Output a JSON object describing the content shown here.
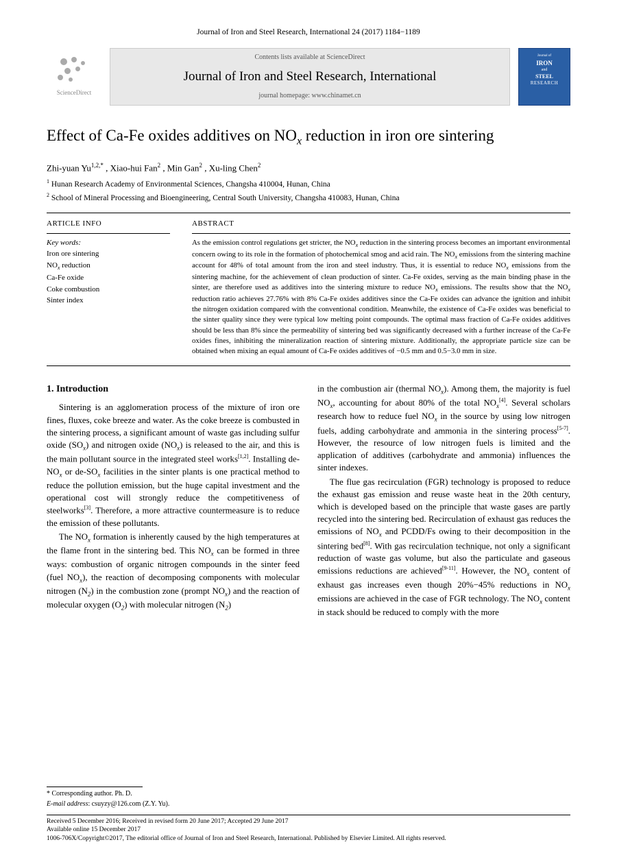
{
  "running_head": "Journal of Iron and Steel Research, International 24 (2017) 1184−1189",
  "masthead": {
    "sd_label": "ScienceDirect",
    "contents_line": "Contents lists available at ScienceDirect",
    "journal_name": "Journal of Iron and Steel Research, International",
    "homepage": "journal homepage: www.chinamet.cn",
    "cover": {
      "journal": "Journal of",
      "iron": "IRON",
      "and": "and",
      "steel": "STEEL",
      "research": "RESEARCH"
    }
  },
  "title_pre": "Effect of Ca-Fe oxides additives on NO",
  "title_sub": "x",
  "title_post": " reduction in iron ore sintering",
  "authors_html": "Zhi-yuan Yu",
  "author_sup1": "1,2,*",
  "author_sep": " ,  ",
  "author2": "Xiao-hui Fan",
  "author2_sup": "2",
  "author3": "Min Gan",
  "author3_sup": "2",
  "author4": "Xu-ling Chen",
  "author4_sup": "2",
  "affil1_sup": "1",
  "affil1": " Hunan Research Academy of Environmental Sciences, Changsha 410004, Hunan, China",
  "affil2_sup": "2",
  "affil2": " School of Mineral Processing and Bioengineering, Central South University, Changsha 410083, Hunan, China",
  "info": {
    "left_head": "ARTICLE INFO",
    "right_head": "ABSTRACT",
    "kw_label": "Key words:",
    "keywords": [
      "Iron ore sintering",
      "NO_x reduction",
      "Ca-Fe oxide",
      "Coke combustion",
      "Sinter index"
    ]
  },
  "abstract": "As the emission control regulations get stricter, the NO_x reduction in the sintering process becomes an important environmental concern owing to its role in the formation of photochemical smog and acid rain. The NO_x emissions from the sintering machine account for 48% of total amount from the iron and steel industry. Thus, it is essential to reduce NO_x emissions from the sintering machine, for the achievement of clean production of sinter. Ca-Fe oxides, serving as the main binding phase in the sinter, are therefore used as additives into the sintering mixture to reduce NO_x emissions. The results show that the NO_x reduction ratio achieves 27.76% with 8% Ca-Fe oxides additives since the Ca-Fe oxides can advance the ignition and inhibit the nitrogen oxidation compared with the conventional condition. Meanwhile, the existence of Ca-Fe oxides was beneficial to the sinter quality since they were typical low melting point compounds. The optimal mass fraction of Ca-Fe oxides additives should be less than 8% since the permeability of sintering bed was significantly decreased with a further increase of the Ca-Fe oxides fines, inhibiting the mineralization reaction of sintering mixture. Additionally, the appropriate particle size can be obtained when mixing an equal amount of Ca-Fe oxides additives of −0.5 mm and 0.5−3.0 mm in size.",
  "section1_head": "1. Introduction",
  "col1_p1": "Sintering is an agglomeration process of the mixture of iron ore fines, fluxes, coke breeze and water. As the coke breeze is combusted in the sintering process, a significant amount of waste gas including sulfur oxide (SO_x) and nitrogen oxide (NO_x) is released to the air, and this is the main pollutant source in the integrated steel works^[1,2]. Installing de-NO_x or de-SO_x facilities in the sinter plants is one practical method to reduce the pollution emission, but the huge capital investment and the operational cost will strongly reduce the competitiveness of steelworks^[3]. Therefore, a more attractive countermeasure is to reduce the emission of these pollutants.",
  "col1_p2": "The NO_x formation is inherently caused by the high temperatures at the flame front in the sintering bed. This NO_x can be formed in three ways: combustion of organic nitrogen compounds in the sinter feed (fuel NO_x), the reaction of decomposing components with molecular nitrogen (N_2) in the combustion zone (prompt NO_x) and the reaction of molecular oxygen (O_2) with molecular nitrogen (N_2)",
  "col2_p1": "in the combustion air (thermal NO_x). Among them, the majority is fuel NO_x, accounting for about 80% of the total NO_x^[4]. Several scholars research how to reduce fuel NO_x in the source by using low nitrogen fuels, adding carbohydrate and ammonia in the sintering process^[5-7]. However, the resource of low nitrogen fuels is limited and the application of additives (carbohydrate and ammonia) influences the sinter indexes.",
  "col2_p2": "The flue gas recirculation (FGR) technology is proposed to reduce the exhaust gas emission and reuse waste heat in the 20th century, which is developed based on the principle that waste gases are partly recycled into the sintering bed. Recirculation of exhaust gas reduces the emissions of NO_x and PCDD/Fs owing to their decomposition in the sintering bed^[8]. With gas recirculation technique, not only a significant reduction of waste gas volume, but also the particulate and gaseous emissions reductions are achieved^[9-11]. However, the NO_x content of exhaust gas increases even though 20%−45% reductions in NO_x emissions are achieved in the case of FGR technology. The NO_x content in stack should be reduced to comply with the more",
  "footer": {
    "corr": "* Corresponding author. Ph. D.",
    "email_label": "E-mail address",
    "email": ": csuyzy@126.com (Z.Y. Yu).",
    "received": "Received 5 December 2016; Received in revised form 20 June 2017; Accepted 29 June 2017",
    "online": "Available online 15 December 2017",
    "copyright": "1006-706X/Copyright©2017, The editorial office of Journal of Iron and Steel Research, International. Published by Elsevier Limited. All rights reserved."
  },
  "colors": {
    "banner_bg": "#e8e8e8",
    "cover_bg": "#2a5fa5",
    "text": "#000000",
    "muted": "#888888"
  }
}
